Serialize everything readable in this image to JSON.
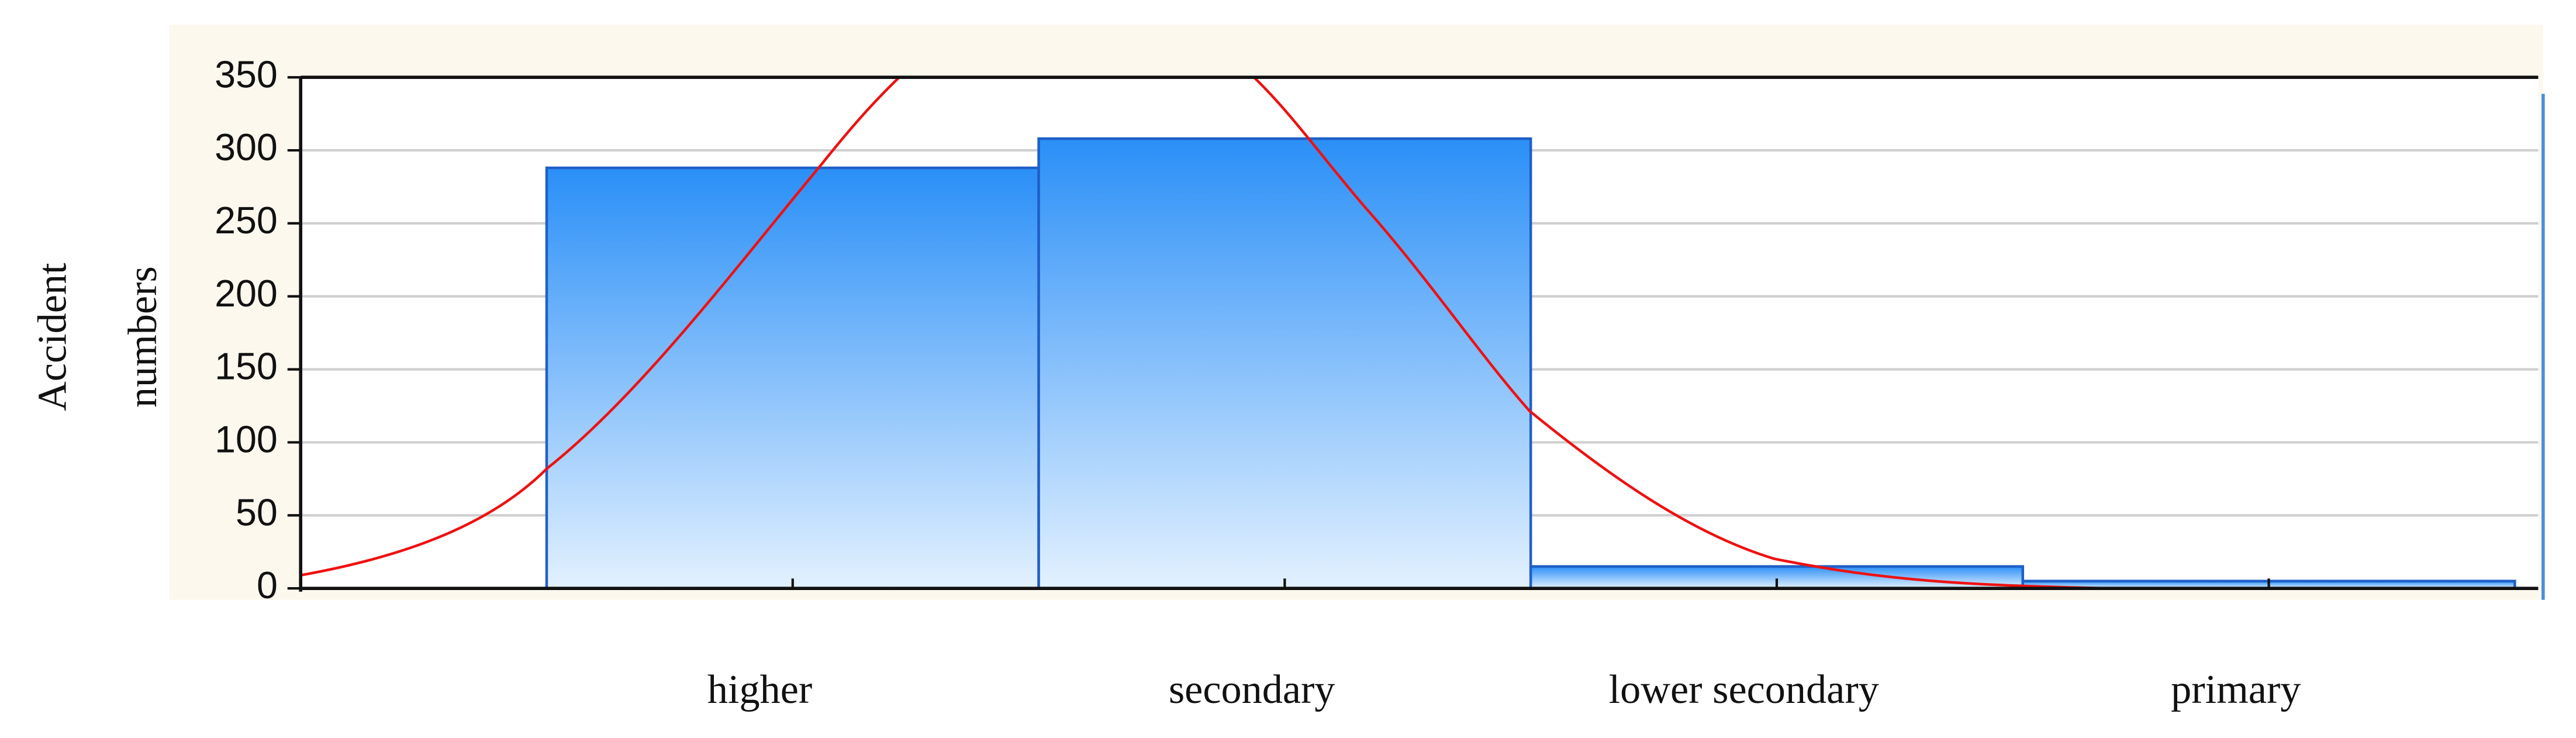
{
  "chart_data": {
    "type": "bar",
    "y_label": "Accident numbers",
    "categories": [
      "higher",
      "secondary",
      "lower secondary",
      "primary"
    ],
    "values": [
      288,
      308,
      15,
      5
    ],
    "color": "#2a8ff7",
    "ylim": [
      0,
      350
    ],
    "yticks": [
      0,
      50,
      100,
      150,
      200,
      250,
      300,
      350
    ],
    "grid": true
  }
}
